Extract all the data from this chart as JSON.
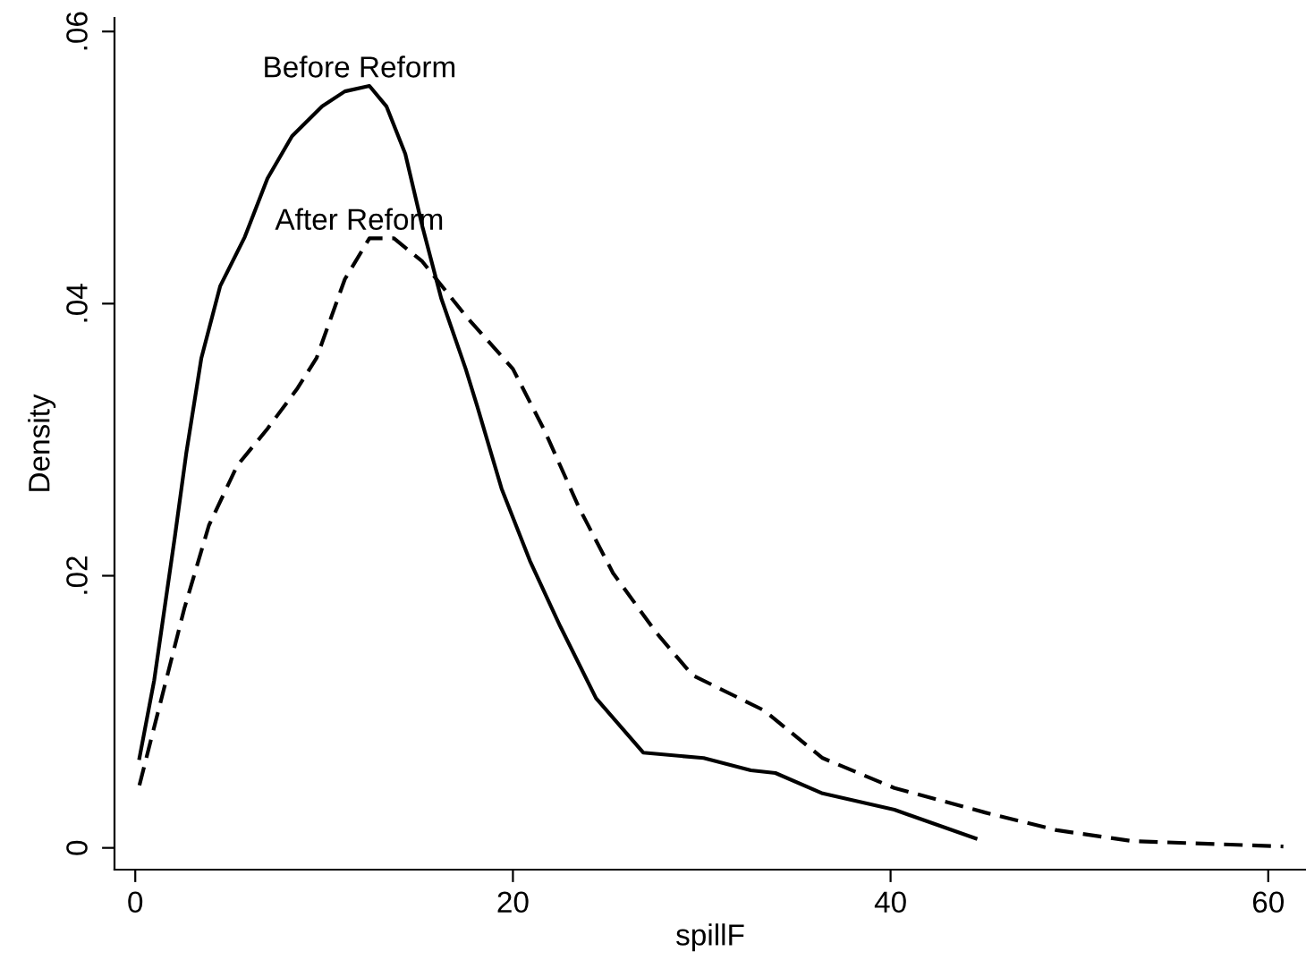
{
  "chart_data": {
    "type": "line",
    "xlabel": "spillF",
    "ylabel": "Density",
    "xlim": [
      -1.1,
      62
    ],
    "ylim": [
      -0.0016,
      0.061
    ],
    "xticks": [
      0,
      20,
      40,
      60
    ],
    "yticks": [
      {
        "value": 0,
        "label": "0"
      },
      {
        "value": 0.02,
        "label": ".02"
      },
      {
        "value": 0.04,
        "label": ".04"
      },
      {
        "value": 0.06,
        "label": ".06"
      }
    ],
    "grid": false,
    "legend": false,
    "series": [
      {
        "name": "Before Reform",
        "color": "#000000",
        "line_style": "solid",
        "x": [
          0.22,
          1.0,
          2.1,
          2.7,
          3.5,
          4.5,
          5.8,
          7.0,
          8.3,
          9.9,
          11.1,
          12.4,
          13.3,
          14.3,
          15.2,
          16.2,
          17.5,
          18.1,
          19.4,
          20.9,
          22.5,
          24.4,
          26.9,
          30.1,
          32.6,
          33.9,
          36.4,
          40.2,
          44.5
        ],
        "values": [
          0.0066,
          0.0123,
          0.0229,
          0.029,
          0.036,
          0.0413,
          0.0449,
          0.0492,
          0.0523,
          0.0545,
          0.0556,
          0.056,
          0.0545,
          0.051,
          0.0457,
          0.0404,
          0.0352,
          0.0325,
          0.0264,
          0.0211,
          0.0163,
          0.011,
          0.007,
          0.0066,
          0.0057,
          0.0055,
          0.004,
          0.0028,
          0.0007
        ]
      },
      {
        "name": "After Reform",
        "color": "#000000",
        "line_style": "dashed",
        "x": [
          0.22,
          1.3,
          2.6,
          3.9,
          5.4,
          7.0,
          8.6,
          9.6,
          11.1,
          12.4,
          13.7,
          15.2,
          17.5,
          20.0,
          21.7,
          23.5,
          25.3,
          27.6,
          29.5,
          33.3,
          36.4,
          40.2,
          45.0,
          48.8,
          52.8,
          60.8
        ],
        "values": [
          0.0046,
          0.0105,
          0.0176,
          0.0237,
          0.0281,
          0.0308,
          0.0338,
          0.036,
          0.0418,
          0.0448,
          0.0448,
          0.0431,
          0.0391,
          0.0352,
          0.0306,
          0.025,
          0.0202,
          0.0158,
          0.0127,
          0.0101,
          0.0066,
          0.0044,
          0.0026,
          0.0013,
          0.0005,
          0.0001
        ]
      }
    ]
  }
}
